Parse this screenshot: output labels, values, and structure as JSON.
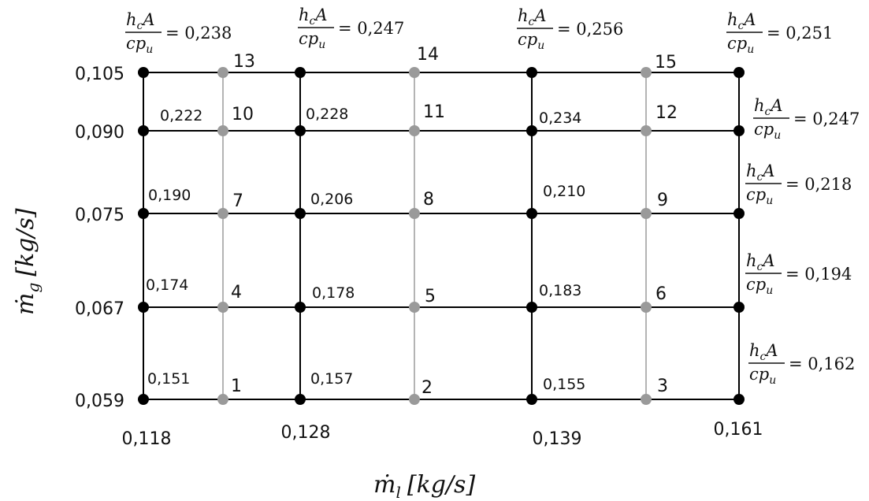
{
  "x_ticks": [
    "0,118",
    "0,128",
    "0,139",
    "0,161"
  ],
  "y_ticks": [
    "0,105",
    "0,090",
    "0,075",
    "0,067",
    "0,059"
  ],
  "x_axis_label": {
    "sym": "ṁ",
    "sub": "l",
    "unit": "[kg/s]"
  },
  "y_axis_label": {
    "sym": "ṁ",
    "sub": "g",
    "unit": "[kg/s]"
  },
  "fraction": {
    "numerator": "h",
    "num_sub": "c",
    "num_tail": "A",
    "denominator": "cp",
    "den_sub": "u"
  },
  "top_values": [
    "= 0,238",
    "= 0,247",
    "= 0,256",
    "= 0,251"
  ],
  "right_values": [
    "= 0,247",
    "= 0,218",
    "= 0,194",
    "= 0,162"
  ],
  "node_values": {
    "row_090": [
      "0,222",
      "0,228",
      "0,234"
    ],
    "row_075": [
      "0,190",
      "0,206",
      "0,210"
    ],
    "row_067": [
      "0,174",
      "0,178",
      "0,183"
    ],
    "row_059": [
      "0,151",
      "0,157",
      "0,155"
    ]
  },
  "point_numbers": {
    "row_105": [
      "13",
      "14",
      "15"
    ],
    "row_090": [
      "10",
      "11",
      "12"
    ],
    "row_075": [
      "7",
      "8",
      "9"
    ],
    "row_067": [
      "4",
      "5",
      "6"
    ],
    "row_059": [
      "1",
      "2",
      "3"
    ]
  },
  "colors": {
    "black_node": "#000000",
    "gray_node": "#9a9a9a",
    "black_line": "#000000",
    "gray_line": "#b4b4b4"
  }
}
